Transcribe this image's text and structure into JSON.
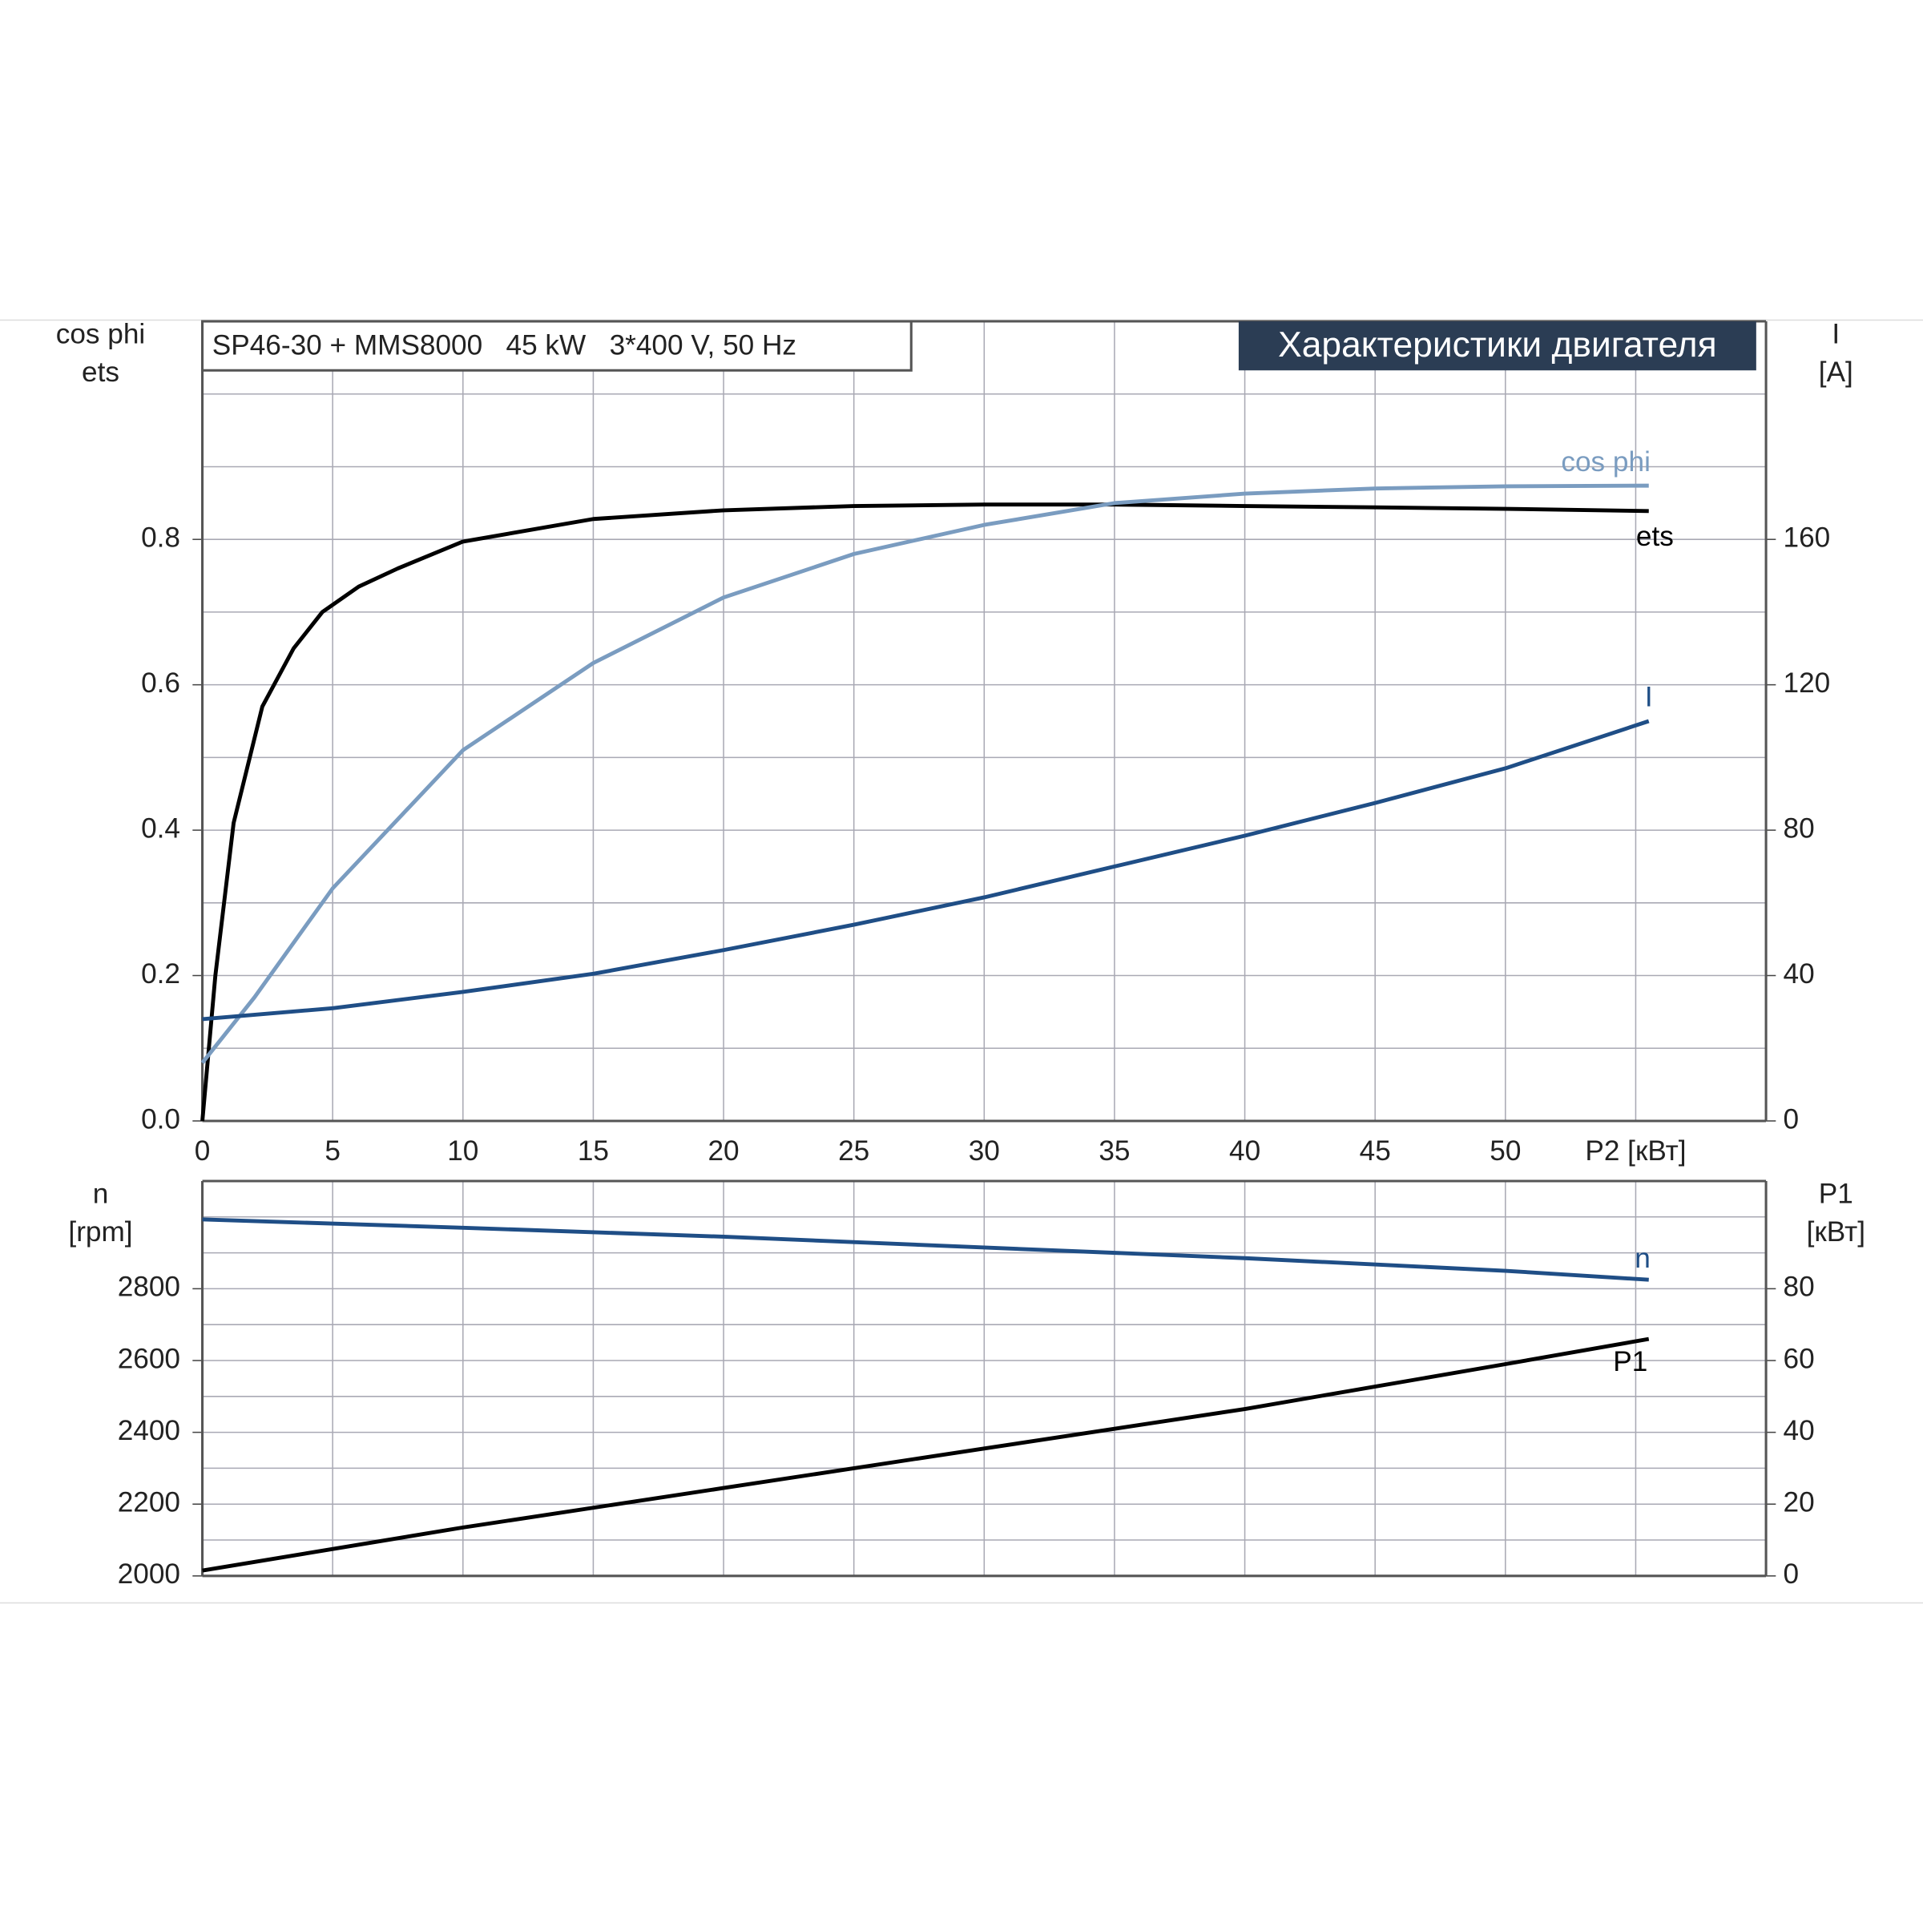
{
  "chart_data": [
    {
      "type": "line",
      "title": "SP46-30 + MMS8000   45 kW   3*400 V, 50 Hz",
      "header": "Характеристики двигателя",
      "ylabel_lines": [
        "cos phi",
        "ets"
      ],
      "y2label_lines": [
        "I",
        "[A]"
      ],
      "xlim": [
        0,
        60
      ],
      "xticks": [
        0,
        5,
        10,
        15,
        20,
        25,
        30,
        35,
        40,
        45,
        50,
        {
          "value": 55,
          "label": "P2 [кВт]"
        }
      ],
      "ylim": [
        0,
        1.1
      ],
      "yticks": [
        {
          "value": 0,
          "label": "0.0"
        },
        0.2,
        0.4,
        0.6,
        0.8
      ],
      "ygrid": [
        0.1,
        0.2,
        0.3,
        0.4,
        0.5,
        0.6,
        0.7,
        0.8,
        0.9,
        1.0
      ],
      "y2lim": [
        0,
        220
      ],
      "y2ticks": [
        0,
        40,
        80,
        120,
        160
      ],
      "grid": true,
      "series": [
        {
          "name": "ets",
          "color": "#000000",
          "x": [
            0,
            0.5,
            1.2,
            2.3,
            3.5,
            4.6,
            6,
            7.5,
            10,
            15,
            20,
            25,
            30,
            35,
            40,
            45,
            50,
            55.5
          ],
          "values": [
            0,
            0.2,
            0.41,
            0.57,
            0.65,
            0.7,
            0.735,
            0.76,
            0.797,
            0.828,
            0.84,
            0.846,
            0.848,
            0.848,
            0.846,
            0.844,
            0.842,
            0.839
          ]
        },
        {
          "name": "cos phi",
          "color": "#7a9cc0",
          "x": [
            0,
            2,
            5,
            10,
            15,
            20,
            25,
            30,
            35,
            40,
            45,
            50,
            55.5
          ],
          "values": [
            0.08,
            0.17,
            0.32,
            0.51,
            0.63,
            0.72,
            0.78,
            0.82,
            0.85,
            0.863,
            0.87,
            0.873,
            0.874
          ]
        },
        {
          "name": "I",
          "color": "#1f4e86",
          "axis": "y2",
          "x": [
            0,
            5,
            10,
            15,
            20,
            25,
            30,
            35,
            40,
            45,
            50,
            55.5
          ],
          "values": [
            28,
            31,
            35.5,
            40.5,
            47,
            54,
            61.5,
            70,
            78.5,
            87.5,
            97,
            110
          ]
        }
      ]
    },
    {
      "type": "line",
      "ylabel_lines": [
        "n",
        "[rpm]"
      ],
      "y2label_lines": [
        "P1",
        "[кВт]"
      ],
      "xlim": [
        0,
        60
      ],
      "ylim": [
        2000,
        3100
      ],
      "yticks": [
        2000,
        2200,
        2400,
        2600,
        2800
      ],
      "ygrid": [
        2100,
        2200,
        2300,
        2400,
        2500,
        2600,
        2700,
        2800,
        2900,
        3000
      ],
      "y2lim": [
        0,
        110
      ],
      "y2ticks": [
        0,
        20,
        40,
        60,
        80
      ],
      "grid": true,
      "series": [
        {
          "name": "n",
          "color": "#1f4e86",
          "x": [
            0,
            10,
            20,
            30,
            40,
            50,
            55.5
          ],
          "values": [
            2993,
            2970,
            2945,
            2915,
            2885,
            2850,
            2825
          ]
        },
        {
          "name": "P1",
          "color": "#000000",
          "axis": "y2",
          "x": [
            0,
            10,
            20,
            30,
            40,
            50,
            55.5
          ],
          "values": [
            1.5,
            13.5,
            24.5,
            35.5,
            46.5,
            59,
            66
          ]
        }
      ]
    }
  ]
}
